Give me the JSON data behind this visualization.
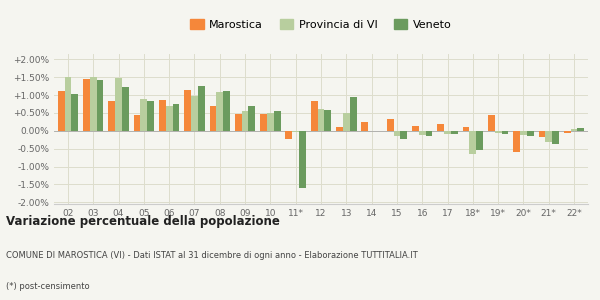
{
  "categories": [
    "02",
    "03",
    "04",
    "05",
    "06",
    "07",
    "08",
    "09",
    "10",
    "11*",
    "12",
    "13",
    "14",
    "15",
    "16",
    "17",
    "18*",
    "19*",
    "20*",
    "21*",
    "22*"
  ],
  "marostica": [
    1.1,
    1.45,
    0.82,
    0.45,
    0.85,
    1.15,
    0.68,
    0.47,
    0.47,
    -0.22,
    0.82,
    0.1,
    0.25,
    0.32,
    0.12,
    0.2,
    0.1,
    0.45,
    -0.58,
    -0.18,
    -0.05
  ],
  "provincia_vi": [
    1.5,
    1.5,
    1.47,
    0.88,
    0.68,
    0.97,
    1.08,
    0.55,
    0.5,
    -0.02,
    0.6,
    0.5,
    0.0,
    -0.15,
    -0.12,
    -0.1,
    -0.65,
    -0.05,
    -0.12,
    -0.32,
    0.05
  ],
  "veneto": [
    1.03,
    1.42,
    1.22,
    0.82,
    0.75,
    1.25,
    1.1,
    0.7,
    0.55,
    -1.6,
    0.58,
    0.95,
    0.0,
    -0.22,
    -0.15,
    -0.08,
    -0.55,
    -0.1,
    -0.15,
    -0.38,
    0.08
  ],
  "color_marostica": "#f5873a",
  "color_provincia": "#b8ce9e",
  "color_veneto": "#6b9b5e",
  "bg_color": "#f5f5f0",
  "grid_color": "#ddddcc",
  "title": "Variazione percentuale della popolazione",
  "subtitle": "COMUNE DI MAROSTICA (VI) - Dati ISTAT al 31 dicembre di ogni anno - Elaborazione TUTTITALIA.IT",
  "footnote": "(*) post-censimento",
  "ylim": [
    -2.05,
    2.15
  ],
  "yticks": [
    -2.0,
    -1.5,
    -1.0,
    -0.5,
    0.0,
    0.5,
    1.0,
    1.5,
    2.0
  ],
  "ytick_labels": [
    "-2.00%",
    "-1.50%",
    "-1.00%",
    "-0.50%",
    "0.00%",
    "+0.50%",
    "+1.00%",
    "+1.50%",
    "+2.00%"
  ]
}
